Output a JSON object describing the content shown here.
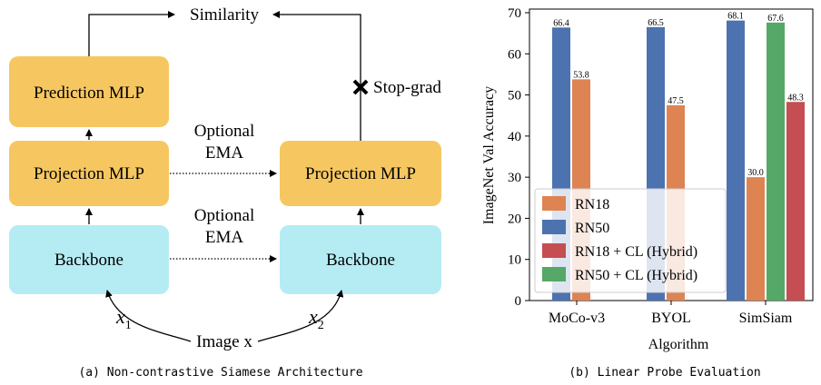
{
  "diagram": {
    "similarity": "Similarity",
    "prediction_mlp": "Prediction MLP",
    "projection_mlp_left": "Projection MLP",
    "projection_mlp_right": "Projection MLP",
    "backbone_left": "Backbone",
    "backbone_right": "Backbone",
    "stop_grad": "Stop-grad",
    "optional_ema_1_line1": "Optional",
    "optional_ema_1_line2": "EMA",
    "optional_ema_2_line1": "Optional",
    "optional_ema_2_line2": "EMA",
    "image_label": "Image x",
    "x1_label": "x",
    "x1_sub": "1",
    "x2_label": "x",
    "x2_sub": "2",
    "caption": "(a) Non-contrastive Siamese Architecture",
    "colors": {
      "mlp_box": "#f6c761",
      "backbone_box": "#b5ecf3"
    }
  },
  "chart_data": {
    "type": "bar",
    "caption": "(b) Linear Probe Evaluation",
    "xlabel": "Algorithm",
    "ylabel": "ImageNet Val Accuracy",
    "ylim": [
      0,
      70
    ],
    "yticks": [
      0,
      10,
      20,
      30,
      40,
      50,
      60,
      70
    ],
    "categories": [
      "MoCo-v3",
      "BYOL",
      "SimSiam"
    ],
    "series": [
      {
        "name": "RN50",
        "color": "#4c72b0",
        "values": [
          66.4,
          66.5,
          68.1
        ]
      },
      {
        "name": "RN18",
        "color": "#dd8452",
        "values": [
          53.8,
          47.5,
          30.0
        ]
      },
      {
        "name": "RN50 + CL (Hybrid)",
        "color": "#55a868",
        "values": [
          null,
          null,
          67.6
        ]
      },
      {
        "name": "RN18 + CL (Hybrid)",
        "color": "#c44e52",
        "values": [
          null,
          null,
          48.3
        ]
      }
    ],
    "labels": [
      [
        "66.4",
        "66.5",
        "68.1"
      ],
      [
        "53.8",
        "47.5",
        "30.0"
      ],
      [
        null,
        null,
        "67.6"
      ],
      [
        null,
        null,
        "48.3"
      ]
    ],
    "legend": {
      "position": "lower-left",
      "entries": [
        {
          "name": "RN18",
          "color": "#dd8452"
        },
        {
          "name": "RN50",
          "color": "#4c72b0"
        },
        {
          "name": "RN18 + CL (Hybrid)",
          "color": "#c44e52"
        },
        {
          "name": "RN50 + CL (Hybrid)",
          "color": "#55a868"
        }
      ]
    },
    "grid": false
  }
}
